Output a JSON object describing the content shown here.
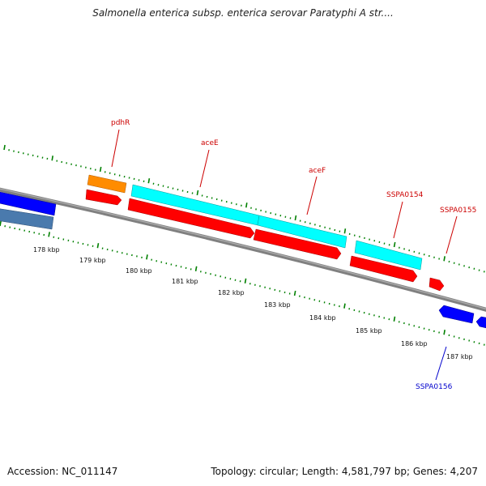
{
  "title": "Salmonella enterica subsp. enterica serovar Paratyphi A str....",
  "footer": {
    "accession": "Accession: NC_011147",
    "summary": "Topology: circular; Length: 4,581,797 bp; Genes: 4,207"
  },
  "colors": {
    "forward_label": "#cc0000",
    "reverse_label": "#0000cc",
    "tick": "#008000",
    "backbone": "#808080",
    "cds_red": "#ff0000",
    "cds_cyan": "#00ffff",
    "cds_orange": "#ff8c00",
    "cds_blue": "#0000ff",
    "cds_steel": "#4a7aad"
  },
  "scale": {
    "labels": [
      "178 kbp",
      "179 kbp",
      "180 kbp",
      "181 kbp",
      "182 kbp",
      "183 kbp",
      "184 kbp",
      "185 kbp",
      "186 kbp",
      "187 kbp"
    ]
  },
  "gene_labels": [
    {
      "name": "pdhR",
      "strand": "forward"
    },
    {
      "name": "aceE",
      "strand": "forward"
    },
    {
      "name": "aceF",
      "strand": "forward"
    },
    {
      "name": "SSPA0154",
      "strand": "forward"
    },
    {
      "name": "SSPA0155",
      "strand": "forward"
    },
    {
      "name": "SSPA0156",
      "strand": "reverse"
    }
  ]
}
